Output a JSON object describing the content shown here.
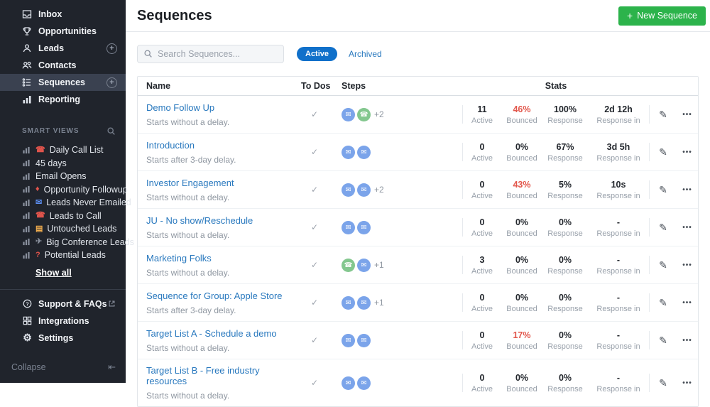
{
  "icons": {
    "plus": "+",
    "check": "✓",
    "edit": "✎",
    "more": "•••",
    "email": "✉",
    "call": "☎",
    "gear": "⚙",
    "collapse": "⇤"
  },
  "sidebar": {
    "nav": [
      {
        "label": "Inbox",
        "icon": "inbox"
      },
      {
        "label": "Opportunities",
        "icon": "opportunities"
      },
      {
        "label": "Leads",
        "icon": "leads",
        "has_add": true
      },
      {
        "label": "Contacts",
        "icon": "contacts"
      },
      {
        "label": "Sequences",
        "icon": "sequences",
        "active": true,
        "has_add": true
      },
      {
        "label": "Reporting",
        "icon": "reporting"
      }
    ],
    "smart_views": {
      "title": "SMART VIEWS",
      "items": [
        {
          "label": "Daily Call List",
          "glyph": "☎",
          "color": "#e0544c"
        },
        {
          "label": "45 days",
          "glyph": "",
          "color": ""
        },
        {
          "label": "Email Opens",
          "glyph": "",
          "color": ""
        },
        {
          "label": "Opportunity Followup",
          "glyph": "♦",
          "color": "#e0544c"
        },
        {
          "label": "Leads Never Emailed",
          "glyph": "✉",
          "color": "#5b8def"
        },
        {
          "label": "Leads to Call",
          "glyph": "☎",
          "color": "#e0544c"
        },
        {
          "label": "Untouched Leads",
          "glyph": "▤",
          "color": "#f0ad4e"
        },
        {
          "label": "Big Conference Leads",
          "glyph": "✈",
          "color": "#8a919e"
        },
        {
          "label": "Potential Leads",
          "glyph": "?",
          "color": "#e0544c"
        }
      ],
      "show_all": "Show all"
    },
    "footer": [
      {
        "label": "Support & FAQs",
        "icon": "help",
        "external": true
      },
      {
        "label": "Integrations",
        "icon": "grid"
      },
      {
        "label": "Settings",
        "icon": "gear"
      }
    ],
    "collapse_label": "Collapse"
  },
  "header": {
    "title": "Sequences",
    "new_button": "New Sequence"
  },
  "toolbar": {
    "search_placeholder": "Search Sequences...",
    "tabs": [
      {
        "label": "Active",
        "active": true
      },
      {
        "label": "Archived"
      }
    ]
  },
  "table": {
    "columns": {
      "name": "Name",
      "todos": "To Dos",
      "steps": "Steps",
      "stats": "Stats"
    },
    "stat_labels": {
      "active": "Active",
      "bounced": "Bounced",
      "response": "Response",
      "response_in": "Response in"
    },
    "rows": [
      {
        "name": "Demo Follow Up",
        "subtitle": "Starts without a delay.",
        "steps": [
          "email",
          "call"
        ],
        "steps_more": "+2",
        "active": "11",
        "bounced": "46%",
        "bounced_alert": true,
        "response": "100%",
        "response_in": "2d 12h"
      },
      {
        "name": "Introduction",
        "subtitle": "Starts after 3-day delay.",
        "steps": [
          "email",
          "email"
        ],
        "steps_more": "",
        "active": "0",
        "bounced": "0%",
        "response": "67%",
        "response_in": "3d 5h"
      },
      {
        "name": "Investor Engagement",
        "subtitle": "Starts without a delay.",
        "steps": [
          "email",
          "email"
        ],
        "steps_more": "+2",
        "active": "0",
        "bounced": "43%",
        "bounced_alert": true,
        "response": "5%",
        "response_in": "10s"
      },
      {
        "name": "JU - No show/Reschedule",
        "subtitle": "Starts without a delay.",
        "steps": [
          "email",
          "email"
        ],
        "steps_more": "",
        "active": "0",
        "bounced": "0%",
        "response": "0%",
        "response_in": "-"
      },
      {
        "name": "Marketing Folks",
        "subtitle": "Starts without a delay.",
        "steps": [
          "call",
          "email"
        ],
        "steps_more": "+1",
        "active": "3",
        "bounced": "0%",
        "response": "0%",
        "response_in": "-"
      },
      {
        "name": "Sequence for Group: Apple Store",
        "subtitle": "Starts after 3-day delay.",
        "steps": [
          "email",
          "email"
        ],
        "steps_more": "+1",
        "active": "0",
        "bounced": "0%",
        "response": "0%",
        "response_in": "-"
      },
      {
        "name": "Target List A - Schedule a demo",
        "subtitle": "Starts without a delay.",
        "steps": [
          "email",
          "email"
        ],
        "steps_more": "",
        "active": "0",
        "bounced": "17%",
        "bounced_alert": true,
        "response": "0%",
        "response_in": "-"
      },
      {
        "name": "Target List B - Free industry resources",
        "subtitle": "Starts without a delay.",
        "steps": [
          "email",
          "email"
        ],
        "steps_more": "",
        "active": "0",
        "bounced": "0%",
        "response": "0%",
        "response_in": "-"
      }
    ]
  },
  "colors": {
    "accent_green": "#2cb34b",
    "accent_blue": "#1070ca",
    "link_blue": "#2878be",
    "alert_red": "#e2574c",
    "sidebar_bg": "#20242c"
  }
}
